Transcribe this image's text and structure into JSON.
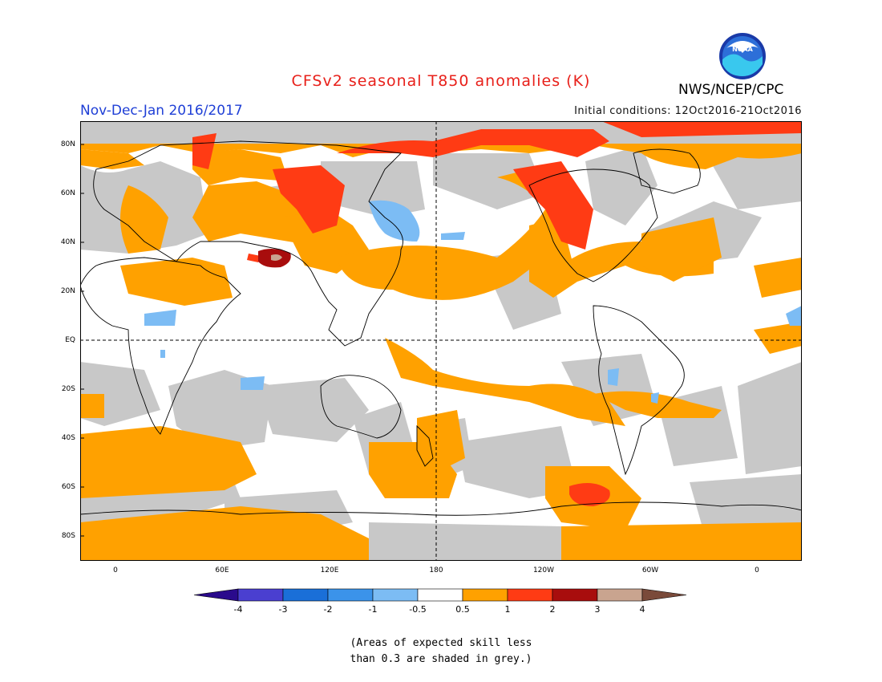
{
  "header": {
    "title": "CFSv2 seasonal T850 anomalies (K)",
    "season": "Nov-Dec-Jan 2016/2017",
    "initial_conditions": "Initial conditions: 12Oct2016-21Oct2016",
    "agency": "NWS/NCEP/CPC",
    "logo_icon": "noaa-logo-icon",
    "logo_text": "NOAA"
  },
  "map": {
    "latitude_labels": [
      "80N",
      "60N",
      "40N",
      "20N",
      "EQ",
      "20S",
      "40S",
      "60S",
      "80S"
    ],
    "longitude_labels": [
      "0",
      "60E",
      "120E",
      "180",
      "120W",
      "60W",
      "0"
    ]
  },
  "legend": {
    "tick_labels": [
      "-4",
      "-3",
      "-2",
      "-1",
      "-0.5",
      "0.5",
      "1",
      "2",
      "3",
      "4"
    ],
    "colors": [
      "#2a0a8c",
      "#4a3fd0",
      "#1a6fd8",
      "#3b93ea",
      "#7cbcf4",
      "#ffffff",
      "#ffa100",
      "#ff3b14",
      "#a80d0d",
      "#c9a48f",
      "#7a4a3a"
    ]
  },
  "footnote": {
    "line1": "(Areas of expected skill less",
    "line2": "than 0.3 are shaded in grey.)"
  }
}
